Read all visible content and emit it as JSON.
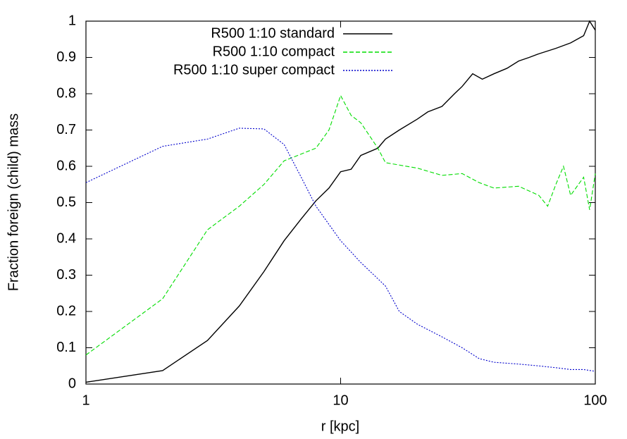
{
  "chart_data": {
    "type": "line",
    "x_label": "r [kpc]",
    "y_label": "Fraction foreign (child) mass",
    "xscale": "log",
    "xlim": [
      1,
      100
    ],
    "xticks": [
      1,
      10,
      100
    ],
    "ylim": [
      0,
      1
    ],
    "yticks": [
      0,
      0.1,
      0.2,
      0.3,
      0.4,
      0.5,
      0.6,
      0.7,
      0.8,
      0.9,
      1
    ],
    "legend": "top-right",
    "series": [
      {
        "name": "R500 1:10 standard",
        "color": "#000000",
        "dash": "solid",
        "x": [
          1,
          2,
          3,
          4,
          5,
          6,
          7,
          8,
          9,
          10,
          11,
          12,
          14,
          15,
          17,
          20,
          22,
          25,
          28,
          30,
          33,
          36,
          40,
          45,
          50,
          55,
          60,
          70,
          80,
          90,
          95,
          100
        ],
        "values": [
          0.005,
          0.037,
          0.12,
          0.215,
          0.31,
          0.395,
          0.455,
          0.505,
          0.54,
          0.585,
          0.592,
          0.63,
          0.65,
          0.675,
          0.7,
          0.73,
          0.75,
          0.765,
          0.8,
          0.82,
          0.855,
          0.84,
          0.855,
          0.87,
          0.89,
          0.9,
          0.91,
          0.925,
          0.94,
          0.96,
          1.0,
          0.975
        ]
      },
      {
        "name": "R500 1:10 compact",
        "color": "#00dd00",
        "dash": "dashed",
        "x": [
          1,
          2,
          3,
          4,
          5,
          6,
          8,
          9,
          10,
          11,
          12,
          14,
          15,
          20,
          25,
          30,
          35,
          40,
          50,
          60,
          65,
          70,
          75,
          80,
          90,
          95,
          100
        ],
        "values": [
          0.08,
          0.235,
          0.425,
          0.49,
          0.55,
          0.615,
          0.65,
          0.7,
          0.795,
          0.74,
          0.72,
          0.65,
          0.61,
          0.595,
          0.575,
          0.58,
          0.555,
          0.54,
          0.545,
          0.52,
          0.49,
          0.55,
          0.6,
          0.52,
          0.57,
          0.48,
          0.58
        ]
      },
      {
        "name": "R500 1:10 super compact",
        "color": "#0000cc",
        "dash": "dotted",
        "x": [
          1,
          2,
          3,
          4,
          5,
          6,
          7,
          8,
          10,
          12,
          15,
          17,
          20,
          25,
          30,
          35,
          40,
          50,
          60,
          70,
          80,
          90,
          100
        ],
        "values": [
          0.555,
          0.655,
          0.675,
          0.705,
          0.703,
          0.66,
          0.57,
          0.49,
          0.395,
          0.335,
          0.27,
          0.2,
          0.165,
          0.13,
          0.1,
          0.07,
          0.06,
          0.055,
          0.05,
          0.045,
          0.04,
          0.04,
          0.035
        ]
      }
    ]
  }
}
